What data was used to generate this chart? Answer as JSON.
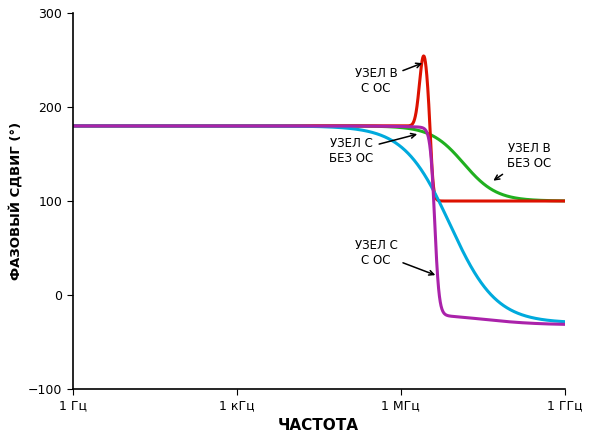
{
  "title": "",
  "xlabel": "ЧАСТОТА",
  "ylabel": "ФАЗОВЫЙ СДВИГ (°)",
  "ylim": [
    -100,
    300
  ],
  "yticks": [
    -100,
    0,
    100,
    200,
    300
  ],
  "xtick_positions": [
    0,
    3,
    6,
    9
  ],
  "xtick_labels": [
    "1 Гц",
    "1 кГц",
    "1 МГц",
    "1 ГГц"
  ],
  "background_color": "#ffffff",
  "green_color": "#20b020",
  "red_color": "#dd1100",
  "cyan_color": "#00aadd",
  "purple_color": "#aa22aa",
  "lw": 2.2
}
